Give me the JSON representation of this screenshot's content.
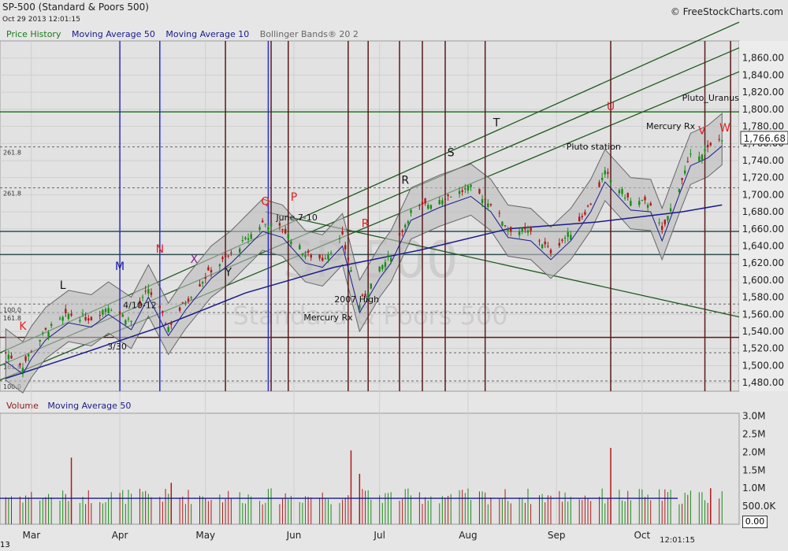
{
  "header": {
    "title": "SP-500 (Standard & Poors 500)",
    "datetime": "Oct 29 2013 12:01:15",
    "copyright": "© FreeStockCharts.com"
  },
  "indicators": {
    "price": [
      {
        "label": "Price History",
        "color": "#1a7a1a"
      },
      {
        "label": "Moving Average 50",
        "color": "#1a1a8c"
      },
      {
        "label": "Moving Average 10",
        "color": "#1a1a8c"
      },
      {
        "label": "Bollinger Bands® 20 2",
        "color": "#666666"
      }
    ],
    "volume": [
      {
        "label": "Volume",
        "color": "#8b1a1a"
      },
      {
        "label": "Moving Average 50",
        "color": "#1a1a8c"
      }
    ]
  },
  "watermark": {
    "symbol": "SP-500",
    "name": "Standard & Poors 500"
  },
  "chart_data": [
    {
      "type": "candlestick",
      "title": "SP-500 (Standard & Poors 500)",
      "ylim": [
        1470,
        1880
      ],
      "yticks": [
        "1,480.00",
        "1,500.00",
        "1,520.00",
        "1,540.00",
        "1,560.00",
        "1,580.00",
        "1,600.00",
        "1,620.00",
        "1,640.00",
        "1,660.00",
        "1,680.00",
        "1,700.00",
        "1,720.00",
        "1,740.00",
        "1,760.00",
        "1,780.00",
        "1,800.00",
        "1,820.00",
        "1,840.00",
        "1,860.00"
      ],
      "xticks": [
        "Mar",
        "Apr",
        "May",
        "Jun",
        "Jul",
        "Aug",
        "Sep",
        "Oct"
      ],
      "last_price": "1,766.68",
      "close_path": [
        [
          "2013-02-20",
          1515
        ],
        [
          "2013-02-26",
          1500
        ],
        [
          "2013-03-01",
          1518
        ],
        [
          "2013-03-06",
          1540
        ],
        [
          "2013-03-14",
          1560
        ],
        [
          "2013-03-22",
          1555
        ],
        [
          "2013-03-28",
          1570
        ],
        [
          "2013-04-05",
          1552
        ],
        [
          "2013-04-11",
          1590
        ],
        [
          "2013-04-18",
          1545
        ],
        [
          "2013-04-24",
          1575
        ],
        [
          "2013-05-03",
          1612
        ],
        [
          "2013-05-10",
          1630
        ],
        [
          "2013-05-21",
          1667
        ],
        [
          "2013-05-28",
          1660
        ],
        [
          "2013-06-05",
          1630
        ],
        [
          "2013-06-11",
          1625
        ],
        [
          "2013-06-18",
          1650
        ],
        [
          "2013-06-24",
          1572
        ],
        [
          "2013-07-01",
          1612
        ],
        [
          "2013-07-05",
          1630
        ],
        [
          "2013-07-12",
          1680
        ],
        [
          "2013-07-22",
          1695
        ],
        [
          "2013-08-02",
          1708
        ],
        [
          "2013-08-09",
          1690
        ],
        [
          "2013-08-15",
          1660
        ],
        [
          "2013-08-23",
          1656
        ],
        [
          "2013-08-30",
          1634
        ],
        [
          "2013-09-06",
          1656
        ],
        [
          "2013-09-13",
          1690
        ],
        [
          "2013-09-18",
          1725
        ],
        [
          "2013-09-27",
          1692
        ],
        [
          "2013-10-04",
          1690
        ],
        [
          "2013-10-08",
          1656
        ],
        [
          "2013-10-14",
          1710
        ],
        [
          "2013-10-18",
          1744
        ],
        [
          "2013-10-24",
          1753
        ],
        [
          "2013-10-29",
          1767
        ]
      ],
      "ma50": [
        [
          "2013-02-20",
          1485
        ],
        [
          "2013-03-15",
          1510
        ],
        [
          "2013-04-15",
          1545
        ],
        [
          "2013-05-15",
          1585
        ],
        [
          "2013-06-15",
          1615
        ],
        [
          "2013-07-15",
          1635
        ],
        [
          "2013-08-15",
          1660
        ],
        [
          "2013-09-15",
          1668
        ],
        [
          "2013-10-15",
          1680
        ],
        [
          "2013-10-29",
          1688
        ]
      ],
      "levels": [
        {
          "value": 1797,
          "color": "#1f7a1f"
        },
        {
          "value": 1657,
          "color": "#2e4f4f"
        },
        {
          "value": 1630,
          "color": "#2e4f4f"
        },
        {
          "value": 1533,
          "color": "#5a1a1a"
        }
      ],
      "fib_labels": [
        "261.8",
        "261.8",
        "100.0",
        "161.8",
        "161.8",
        "100.0"
      ],
      "blue_verticals": [
        "2013-04-01",
        "2013-04-15",
        "2013-05-23"
      ],
      "brown_verticals": [
        "2013-05-08",
        "2013-05-24",
        "2013-05-30",
        "2013-06-20",
        "2013-06-27",
        "2013-07-08",
        "2013-07-16",
        "2013-07-24",
        "2013-08-07",
        "2013-09-20",
        "2013-10-23",
        "2013-11-01"
      ],
      "annotations": [
        {
          "text": "K",
          "date": "2013-02-26",
          "value": 1542,
          "color": "#e02020"
        },
        {
          "text": "L",
          "date": "2013-03-12",
          "value": 1590,
          "color": "#111111"
        },
        {
          "text": "M",
          "date": "2013-04-01",
          "value": 1612,
          "color": "#1a1ab0"
        },
        {
          "text": "N",
          "date": "2013-04-15",
          "value": 1632,
          "color": "#e02020"
        },
        {
          "text": "X",
          "date": "2013-04-27",
          "value": 1620,
          "color": "#8b1a8b"
        },
        {
          "text": "Y",
          "date": "2013-05-09",
          "value": 1605,
          "color": "#111111"
        },
        {
          "text": "Q",
          "date": "2013-05-22",
          "value": 1688,
          "color": "#e02020"
        },
        {
          "text": "P",
          "date": "2013-06-01",
          "value": 1693,
          "color": "#e02020"
        },
        {
          "text": "R",
          "date": "2013-06-26",
          "value": 1662,
          "color": "#e02020"
        },
        {
          "text": "R",
          "date": "2013-07-10",
          "value": 1713,
          "color": "#111111"
        },
        {
          "text": "S",
          "date": "2013-07-26",
          "value": 1745,
          "color": "#111111"
        },
        {
          "text": "T",
          "date": "2013-08-11",
          "value": 1780,
          "color": "#111111"
        },
        {
          "text": "U",
          "date": "2013-09-20",
          "value": 1799,
          "color": "#e02020"
        },
        {
          "text": "V",
          "date": "2013-10-22",
          "value": 1771,
          "color": "#e02020"
        },
        {
          "text": "W",
          "date": "2013-10-30",
          "value": 1774,
          "color": "#e02020"
        },
        {
          "text": "June 7-10",
          "date": "2013-06-02",
          "value": 1670,
          "color": "#111111"
        },
        {
          "text": "4/10-12",
          "date": "2013-04-08",
          "value": 1567,
          "color": "#111111"
        },
        {
          "text": "3/30",
          "date": "2013-03-31",
          "value": 1519,
          "color": "#111111"
        },
        {
          "text": "2007 High",
          "date": "2013-06-23",
          "value": 1574,
          "color": "#111111"
        },
        {
          "text": "Mercury Rx",
          "date": "2013-06-13",
          "value": 1553,
          "color": "#111111"
        },
        {
          "text": "Pluto station",
          "date": "2013-09-14",
          "value": 1753,
          "color": "#111111"
        },
        {
          "text": "Mercury Rx",
          "date": "2013-10-11",
          "value": 1777,
          "color": "#111111"
        },
        {
          "text": "Pluto_Uranus",
          "date": "2013-10-25",
          "value": 1810,
          "color": "#111111"
        }
      ]
    },
    {
      "type": "bar",
      "title": "Volume",
      "ylim": [
        0,
        3300000
      ],
      "yticks": [
        "500.0K",
        "1.0M",
        "1.5M",
        "2.0M",
        "2.5M",
        "3.0M"
      ],
      "zero_label": "0.00",
      "spikes": [
        {
          "date": "2013-03-15",
          "value": 1850000
        },
        {
          "date": "2013-06-21",
          "value": 2050000
        },
        {
          "date": "2013-06-24",
          "value": 1400000
        },
        {
          "date": "2013-09-20",
          "value": 2120000
        },
        {
          "date": "2013-04-19",
          "value": 1150000
        },
        {
          "date": "2013-10-25",
          "value": 1000000
        }
      ],
      "ma50": 720000
    }
  ],
  "footer": {
    "time": "12:01:15",
    "year_stub": "13"
  }
}
